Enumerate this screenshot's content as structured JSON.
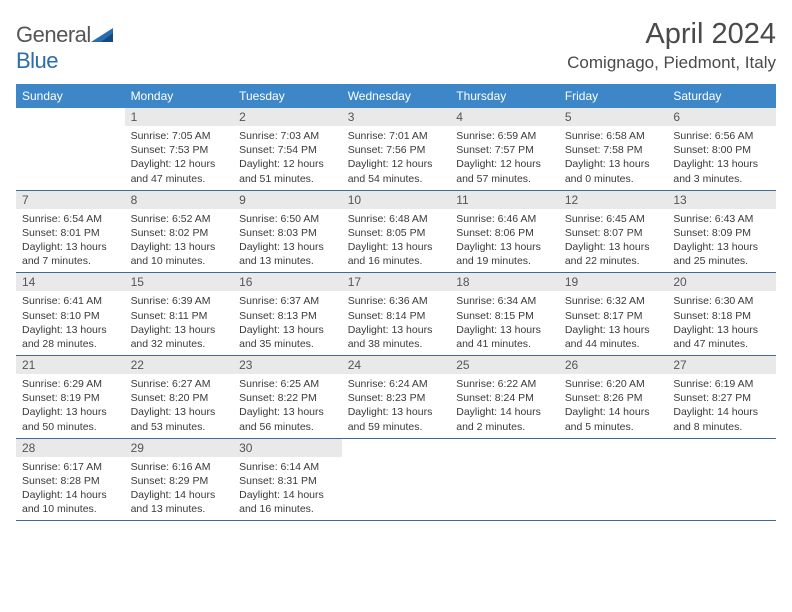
{
  "brand": {
    "name_part1": "General",
    "name_part2": "Blue"
  },
  "header": {
    "month_title": "April 2024",
    "location": "Comignago, Piedmont, Italy"
  },
  "colors": {
    "header_bg": "#3d87c9",
    "header_fg": "#ffffff",
    "row_border": "#3d6a98",
    "daynum_bg": "#e9e9e9",
    "text": "#3a3a3a",
    "logo_blue": "#2a6cb0"
  },
  "weekdays": [
    "Sunday",
    "Monday",
    "Tuesday",
    "Wednesday",
    "Thursday",
    "Friday",
    "Saturday"
  ],
  "weeks": [
    [
      null,
      {
        "n": "1",
        "sr": "7:05 AM",
        "ss": "7:53 PM",
        "dl": "12 hours and 47 minutes."
      },
      {
        "n": "2",
        "sr": "7:03 AM",
        "ss": "7:54 PM",
        "dl": "12 hours and 51 minutes."
      },
      {
        "n": "3",
        "sr": "7:01 AM",
        "ss": "7:56 PM",
        "dl": "12 hours and 54 minutes."
      },
      {
        "n": "4",
        "sr": "6:59 AM",
        "ss": "7:57 PM",
        "dl": "12 hours and 57 minutes."
      },
      {
        "n": "5",
        "sr": "6:58 AM",
        "ss": "7:58 PM",
        "dl": "13 hours and 0 minutes."
      },
      {
        "n": "6",
        "sr": "6:56 AM",
        "ss": "8:00 PM",
        "dl": "13 hours and 3 minutes."
      }
    ],
    [
      {
        "n": "7",
        "sr": "6:54 AM",
        "ss": "8:01 PM",
        "dl": "13 hours and 7 minutes."
      },
      {
        "n": "8",
        "sr": "6:52 AM",
        "ss": "8:02 PM",
        "dl": "13 hours and 10 minutes."
      },
      {
        "n": "9",
        "sr": "6:50 AM",
        "ss": "8:03 PM",
        "dl": "13 hours and 13 minutes."
      },
      {
        "n": "10",
        "sr": "6:48 AM",
        "ss": "8:05 PM",
        "dl": "13 hours and 16 minutes."
      },
      {
        "n": "11",
        "sr": "6:46 AM",
        "ss": "8:06 PM",
        "dl": "13 hours and 19 minutes."
      },
      {
        "n": "12",
        "sr": "6:45 AM",
        "ss": "8:07 PM",
        "dl": "13 hours and 22 minutes."
      },
      {
        "n": "13",
        "sr": "6:43 AM",
        "ss": "8:09 PM",
        "dl": "13 hours and 25 minutes."
      }
    ],
    [
      {
        "n": "14",
        "sr": "6:41 AM",
        "ss": "8:10 PM",
        "dl": "13 hours and 28 minutes."
      },
      {
        "n": "15",
        "sr": "6:39 AM",
        "ss": "8:11 PM",
        "dl": "13 hours and 32 minutes."
      },
      {
        "n": "16",
        "sr": "6:37 AM",
        "ss": "8:13 PM",
        "dl": "13 hours and 35 minutes."
      },
      {
        "n": "17",
        "sr": "6:36 AM",
        "ss": "8:14 PM",
        "dl": "13 hours and 38 minutes."
      },
      {
        "n": "18",
        "sr": "6:34 AM",
        "ss": "8:15 PM",
        "dl": "13 hours and 41 minutes."
      },
      {
        "n": "19",
        "sr": "6:32 AM",
        "ss": "8:17 PM",
        "dl": "13 hours and 44 minutes."
      },
      {
        "n": "20",
        "sr": "6:30 AM",
        "ss": "8:18 PM",
        "dl": "13 hours and 47 minutes."
      }
    ],
    [
      {
        "n": "21",
        "sr": "6:29 AM",
        "ss": "8:19 PM",
        "dl": "13 hours and 50 minutes."
      },
      {
        "n": "22",
        "sr": "6:27 AM",
        "ss": "8:20 PM",
        "dl": "13 hours and 53 minutes."
      },
      {
        "n": "23",
        "sr": "6:25 AM",
        "ss": "8:22 PM",
        "dl": "13 hours and 56 minutes."
      },
      {
        "n": "24",
        "sr": "6:24 AM",
        "ss": "8:23 PM",
        "dl": "13 hours and 59 minutes."
      },
      {
        "n": "25",
        "sr": "6:22 AM",
        "ss": "8:24 PM",
        "dl": "14 hours and 2 minutes."
      },
      {
        "n": "26",
        "sr": "6:20 AM",
        "ss": "8:26 PM",
        "dl": "14 hours and 5 minutes."
      },
      {
        "n": "27",
        "sr": "6:19 AM",
        "ss": "8:27 PM",
        "dl": "14 hours and 8 minutes."
      }
    ],
    [
      {
        "n": "28",
        "sr": "6:17 AM",
        "ss": "8:28 PM",
        "dl": "14 hours and 10 minutes."
      },
      {
        "n": "29",
        "sr": "6:16 AM",
        "ss": "8:29 PM",
        "dl": "14 hours and 13 minutes."
      },
      {
        "n": "30",
        "sr": "6:14 AM",
        "ss": "8:31 PM",
        "dl": "14 hours and 16 minutes."
      },
      null,
      null,
      null,
      null
    ]
  ],
  "labels": {
    "sunrise": "Sunrise:",
    "sunset": "Sunset:",
    "daylight": "Daylight:"
  }
}
